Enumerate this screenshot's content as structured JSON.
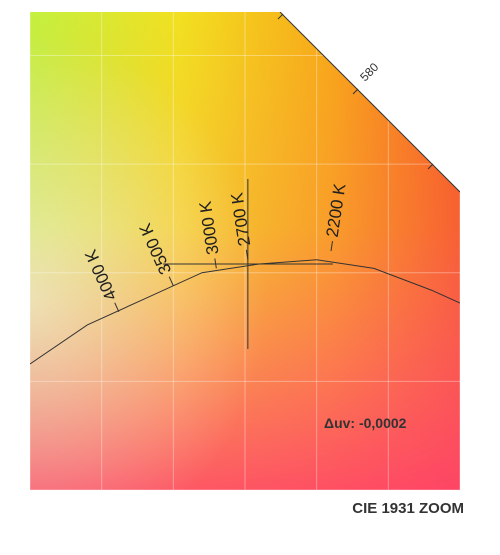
{
  "chart_data": {
    "type": "scatter",
    "title": "CIE 1931 ZOOM",
    "x_range": [
      0.4,
      0.55
    ],
    "y_range": [
      0.36,
      0.47
    ],
    "grid": true,
    "spectral_locus_label": "580",
    "planckian_locus": [
      {
        "x": 0.4,
        "y": 0.389
      },
      {
        "x": 0.42,
        "y": 0.398
      },
      {
        "x": 0.44,
        "y": 0.404
      },
      {
        "x": 0.46,
        "y": 0.41
      },
      {
        "x": 0.48,
        "y": 0.412
      },
      {
        "x": 0.5,
        "y": 0.413
      },
      {
        "x": 0.52,
        "y": 0.411
      },
      {
        "x": 0.54,
        "y": 0.406
      },
      {
        "x": 0.55,
        "y": 0.403
      }
    ],
    "isotherms": [
      {
        "label": "4000 K",
        "x": 0.431,
        "y": 0.401
      },
      {
        "label": "3500 K",
        "x": 0.45,
        "y": 0.407
      },
      {
        "label": "3000 K",
        "x": 0.465,
        "y": 0.411
      },
      {
        "label": "2700 K",
        "x": 0.476,
        "y": 0.413
      },
      {
        "label": "2200 K",
        "x": 0.505,
        "y": 0.415
      }
    ],
    "measured_point": {
      "x": 0.476,
      "y": 0.412
    },
    "annotation": "Δuv: -0,0002"
  }
}
